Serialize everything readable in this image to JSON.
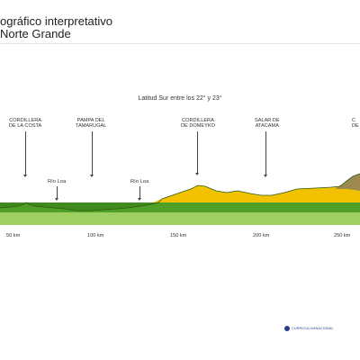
{
  "title": {
    "line1": "ográfico interpretativo",
    "line2": "Norte Grande"
  },
  "subtitle": "Latitud Sur entre los 22° y 23°",
  "features": [
    {
      "line1": "CORDILLERA",
      "line2": "DE LA COSTA"
    },
    {
      "line1": "PAMPA DEL",
      "line2": "TAMARUGAL"
    },
    {
      "line1": "CORDILLERA",
      "line2": "DE DOMEYKO"
    },
    {
      "line1": "SALAR DE",
      "line2": "ATACAMA"
    },
    {
      "line1": "C",
      "line2": "DE"
    }
  ],
  "rivers": [
    "Río Loa",
    "Río Loa"
  ],
  "distance_axis": [
    "50 km",
    "100 km",
    "150 km",
    "200 km",
    "250 km"
  ],
  "layer_colors": {
    "outline": "#2e5a14",
    "relief_green": "#3e8a1e",
    "altitude_yellow": "#f2c200",
    "altitude_brown": "#9c8a50",
    "band_dark_green": "#4f9e26",
    "band_light_green": "#9fce62"
  },
  "logo_text": "CURRICULUMNACIONAL"
}
